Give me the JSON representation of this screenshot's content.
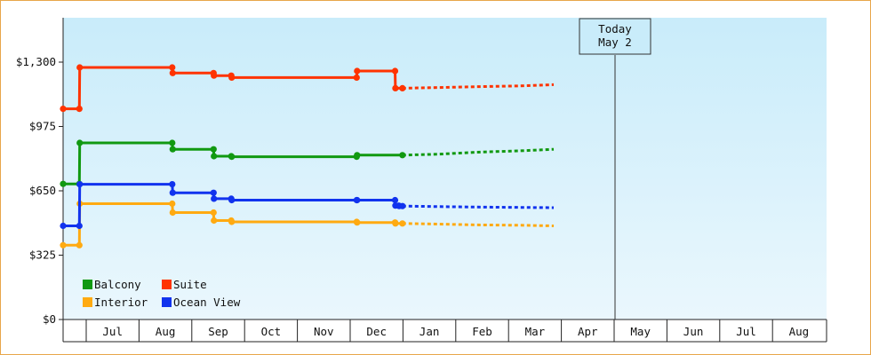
{
  "chart_data": {
    "type": "line",
    "step": true,
    "y_ticks": [
      {
        "value": 0,
        "label": "$0"
      },
      {
        "value": 325,
        "label": "$325"
      },
      {
        "value": 650,
        "label": "$650"
      },
      {
        "value": 975,
        "label": "$975"
      },
      {
        "value": 1300,
        "label": "$1,300"
      }
    ],
    "ylim": [
      0,
      1300
    ],
    "x_months": [
      "Jul",
      "Aug",
      "Sep",
      "Oct",
      "Nov",
      "Dec",
      "Jan",
      "Feb",
      "Mar",
      "Apr",
      "May",
      "Jun",
      "Jul",
      "Aug"
    ],
    "today_label": [
      "Today",
      "May 2"
    ],
    "grid": false,
    "legend_position": "bottom-left",
    "series": [
      {
        "name": "Balcony",
        "color": "#119911",
        "points": [
          [
            0,
            685
          ],
          [
            2.2,
            685
          ],
          [
            2.25,
            892
          ],
          [
            14.8,
            892
          ],
          [
            14.85,
            860
          ],
          [
            20.4,
            860
          ],
          [
            20.45,
            825
          ],
          [
            22.8,
            825
          ],
          [
            22.85,
            822
          ],
          [
            39.8,
            822
          ],
          [
            39.85,
            830
          ],
          [
            46.0,
            830
          ]
        ],
        "forecast": [
          [
            46.0,
            830
          ],
          [
            51.0,
            835
          ],
          [
            56.0,
            845
          ],
          [
            62.0,
            852
          ],
          [
            66.5,
            860
          ]
        ]
      },
      {
        "name": "Suite",
        "color": "#ff3300",
        "points": [
          [
            0,
            1064
          ],
          [
            2.2,
            1064
          ],
          [
            2.25,
            1273
          ],
          [
            14.8,
            1273
          ],
          [
            14.85,
            1245
          ],
          [
            20.4,
            1245
          ],
          [
            20.45,
            1232
          ],
          [
            22.8,
            1232
          ],
          [
            22.85,
            1222
          ],
          [
            39.8,
            1222
          ],
          [
            39.85,
            1255
          ],
          [
            45.0,
            1255
          ],
          [
            45.05,
            1168
          ],
          [
            46.0,
            1168
          ]
        ],
        "forecast": [
          [
            46.0,
            1168
          ],
          [
            51.0,
            1172
          ],
          [
            56.0,
            1176
          ],
          [
            62.0,
            1180
          ],
          [
            66.5,
            1186
          ]
        ]
      },
      {
        "name": "Interior",
        "color": "#ffaa11",
        "points": [
          [
            0,
            375
          ],
          [
            2.2,
            375
          ],
          [
            2.25,
            585
          ],
          [
            14.8,
            585
          ],
          [
            14.85,
            540
          ],
          [
            20.4,
            540
          ],
          [
            20.45,
            500
          ],
          [
            22.8,
            500
          ],
          [
            22.85,
            493
          ],
          [
            39.8,
            493
          ],
          [
            39.85,
            490
          ],
          [
            45.0,
            490
          ],
          [
            45.05,
            485
          ],
          [
            46.0,
            485
          ]
        ],
        "forecast": [
          [
            46.0,
            485
          ],
          [
            51.0,
            482
          ],
          [
            56.0,
            478
          ],
          [
            62.0,
            476
          ],
          [
            66.5,
            473
          ]
        ]
      },
      {
        "name": "Ocean View",
        "color": "#1133ee",
        "points": [
          [
            0,
            473
          ],
          [
            2.2,
            473
          ],
          [
            2.25,
            683
          ],
          [
            14.8,
            683
          ],
          [
            14.85,
            640
          ],
          [
            20.4,
            640
          ],
          [
            20.45,
            610
          ],
          [
            22.8,
            610
          ],
          [
            22.85,
            603
          ],
          [
            39.8,
            603
          ],
          [
            39.85,
            603
          ],
          [
            45.0,
            603
          ],
          [
            45.05,
            575
          ],
          [
            45.5,
            575
          ],
          [
            45.55,
            573
          ],
          [
            46.0,
            573
          ]
        ],
        "forecast": [
          [
            46.0,
            573
          ],
          [
            51.0,
            570
          ],
          [
            56.0,
            568
          ],
          [
            62.0,
            566
          ],
          [
            66.5,
            565
          ]
        ]
      }
    ],
    "legend": [
      {
        "name": "Balcony",
        "color": "#119911"
      },
      {
        "name": "Suite",
        "color": "#ff3300"
      },
      {
        "name": "Interior",
        "color": "#ffaa11"
      },
      {
        "name": "Ocean View",
        "color": "#1133ee"
      }
    ]
  }
}
